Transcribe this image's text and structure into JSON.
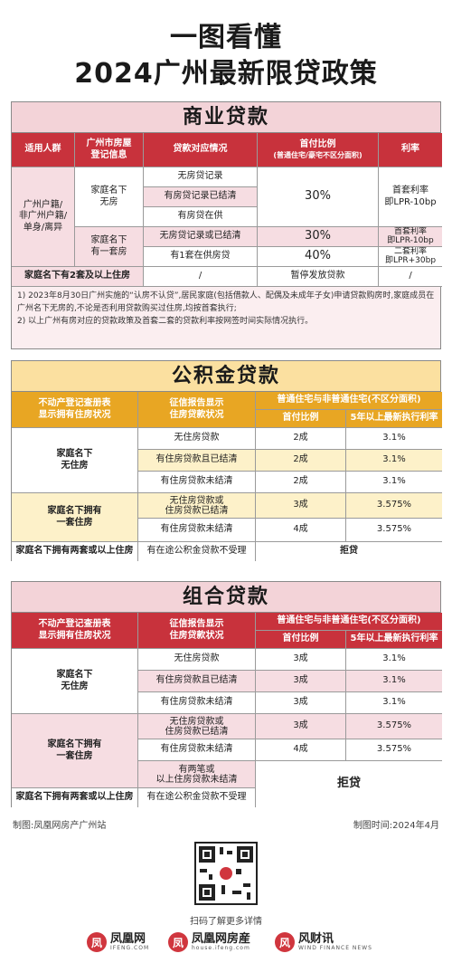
{
  "title_line1": "一图看懂",
  "title_line2": "2024广州最新限贷政策",
  "commercial": {
    "heading": "商业贷款",
    "headers": [
      "适用人群",
      "广州市房屋\n登记信息",
      "贷款对应情况",
      "首付比例",
      "(普通住宅/豪宅不区分面积)",
      "利率"
    ],
    "group_label": "广州户籍/\n非广州户籍/\n单身/离异",
    "no_house_label": "家庭名下\n无房",
    "one_house_label": "家庭名下\n有一套房",
    "rows": [
      {
        "case": "无房贷记录"
      },
      {
        "case": "有房贷记录已结清"
      },
      {
        "case": "有房贷在供"
      },
      {
        "case": "无房贷记录或已结清"
      },
      {
        "case": "有1套在供房贷"
      }
    ],
    "down_30_a": "30%",
    "down_30_b": "30%",
    "down_40": "40%",
    "rate_first_a": "首套利率\n即LPR-10bp",
    "rate_first_b": "首套利率\n即LPR-10bp",
    "rate_second": "二套利率\n即LPR+30bp",
    "two_plus_label": "家庭名下有2套及以上住房",
    "two_plus_slash1": "/",
    "two_plus_down": "暂停发放贷款",
    "two_plus_slash2": "/",
    "notes": [
      "1) 2023年8月30日广州实施的“认房不认贷”,居民家庭(包括借款人、配偶及未成年子女)申请贷款购房时,家庭成员在广州名下无房的,不论是否利用贷款购买过住房,均按首套执行;",
      "2) 以上广州有房对应的贷款政策及首套二套的贷款利率按网签时间实际情况执行。"
    ]
  },
  "provident": {
    "heading": "公积金贷款",
    "headers": [
      "不动产登记查册表\n显示拥有住房状况",
      "征信报告显示\n住房贷款状况",
      "普通住宅与非普通住宅(不区分面积)",
      "首付比例",
      "5年以上最新执行利率"
    ],
    "no_house_label": "家庭名下\n无住房",
    "one_house_label": "家庭名下拥有\n一套住房",
    "rows": [
      {
        "case": "无住房贷款",
        "down": "2成",
        "rate": "3.1%"
      },
      {
        "case": "有住房贷款且已结清",
        "down": "2成",
        "rate": "3.1%"
      },
      {
        "case": "有住房贷款未结清",
        "down": "2成",
        "rate": "3.1%"
      },
      {
        "case": "无住房贷款或\n住房贷款已结清",
        "down": "3成",
        "rate": "3.575%"
      },
      {
        "case": "有住房贷款未结清",
        "down": "4成",
        "rate": "3.575%"
      }
    ],
    "last_label": "家庭名下拥有两套或以上住房",
    "last_case": "有在途公积金贷款不受理",
    "last_result": "拒贷"
  },
  "combo": {
    "heading": "组合贷款",
    "headers": [
      "不动产登记查册表\n显示拥有住房状况",
      "征信报告显示\n住房贷款状况",
      "普通住宅与非普通住宅(不区分面积)",
      "首付比例",
      "5年以上最新执行利率"
    ],
    "no_house_label": "家庭名下\n无住房",
    "one_house_label": "家庭名下拥有\n一套住房",
    "rows": [
      {
        "case": "无住房贷款",
        "down": "3成",
        "rate": "3.1%"
      },
      {
        "case": "有住房贷款且已结清",
        "down": "3成",
        "rate": "3.1%"
      },
      {
        "case": "有住房贷款未结清",
        "down": "3成",
        "rate": "3.1%"
      },
      {
        "case": "无住房贷款或\n住房贷款已结清",
        "down": "3成",
        "rate": "3.575%"
      },
      {
        "case": "有住房贷款未结清",
        "down": "4成",
        "rate": "3.575%"
      }
    ],
    "two_case": "有两笔或\n以上住房贷款未结清",
    "reject": "拒贷",
    "last_label": "家庭名下拥有两套或以上住房",
    "last_case": "有在途公积金贷款不受理"
  },
  "footer": {
    "maker": "制图:凤凰网房产广州站",
    "date": "制图时间:2024年4月",
    "scan": "扫码了解更多详情",
    "logos": [
      {
        "mark": "凤",
        "text": "凤凰网",
        "sub": "IFENG.COM"
      },
      {
        "mark": "凤",
        "text": "凤凰网房産",
        "sub": "house.ifeng.com"
      },
      {
        "mark": "风",
        "text": "风财讯",
        "sub": "WIND FINANCE NEWS"
      }
    ]
  }
}
